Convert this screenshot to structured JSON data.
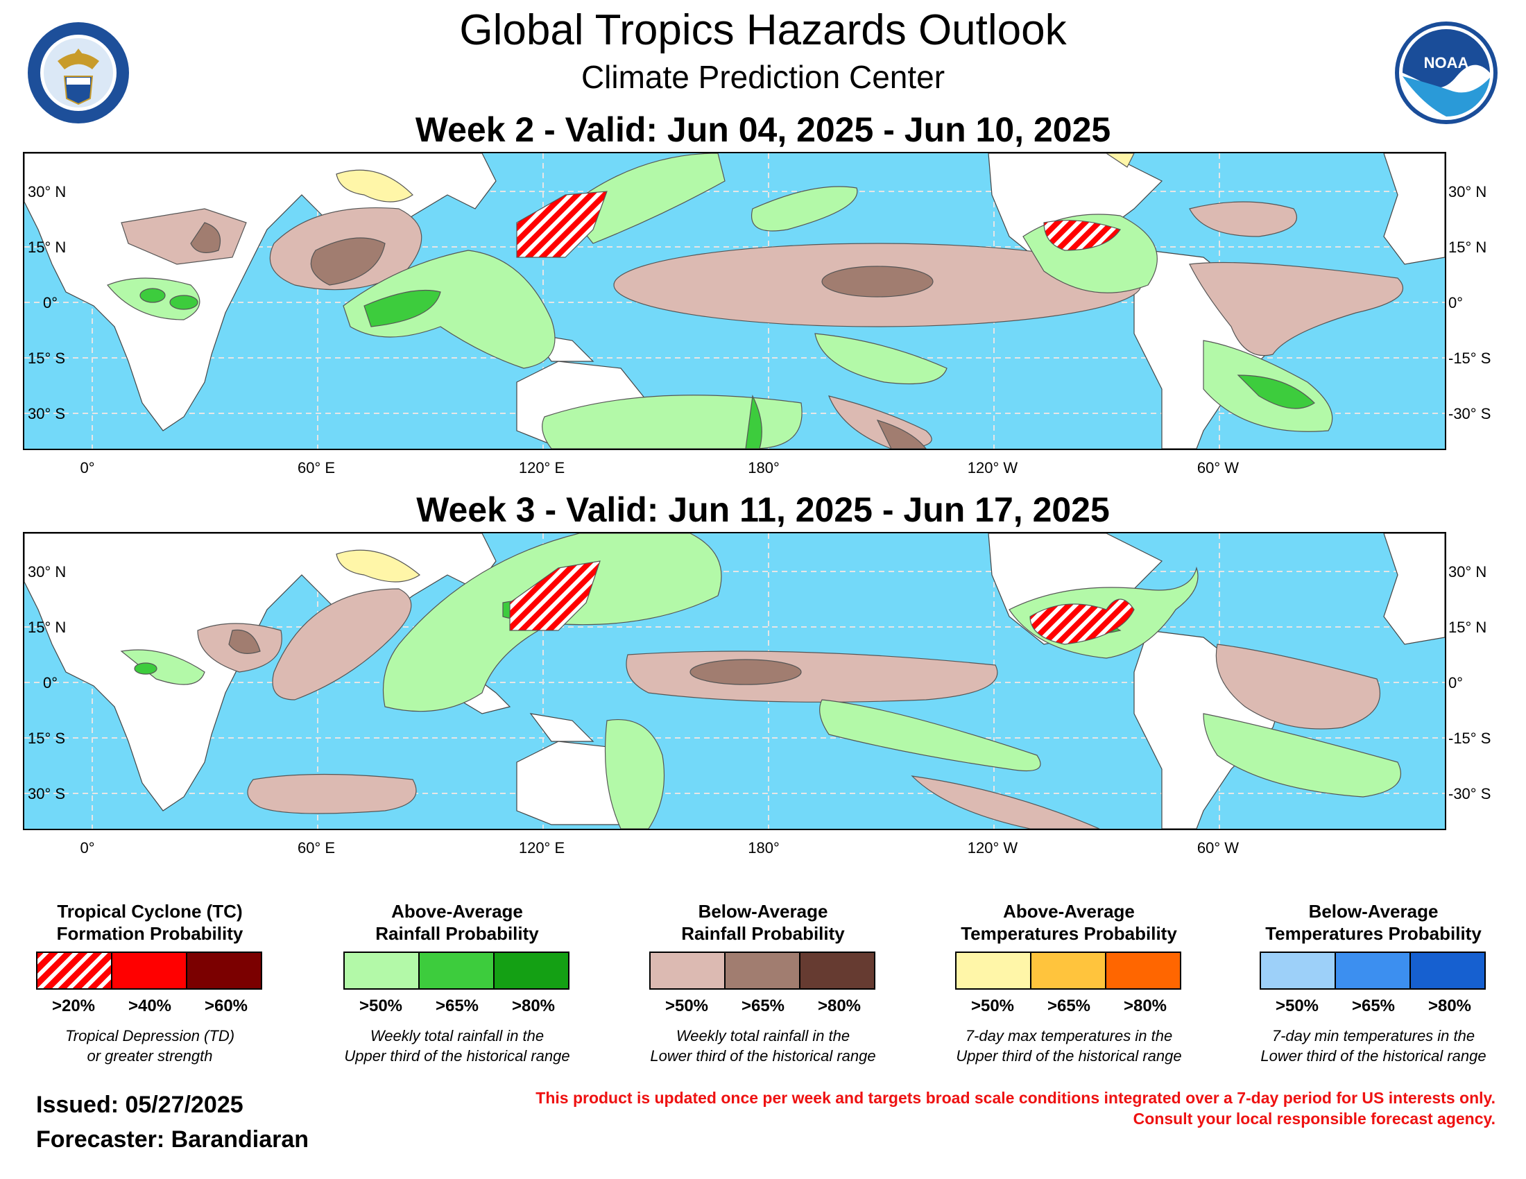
{
  "header": {
    "title": "Global Tropics Hazards Outlook",
    "subtitle": "Climate Prediction Center"
  },
  "logos": {
    "left": "department-of-commerce-seal",
    "right": "noaa-logo",
    "right_text": "NOAA"
  },
  "maps": [
    {
      "title": "Week 2 - Valid: Jun 04, 2025 - Jun 10, 2025"
    },
    {
      "title": "Week 3 - Valid: Jun 11, 2025 - Jun 17, 2025"
    }
  ],
  "axes": {
    "lat_left": [
      "30° N",
      "15° N",
      "0°",
      "15° S",
      "30° S"
    ],
    "lat_right": [
      "30° N",
      "15° N",
      "0°",
      "-15° S",
      "-30° S"
    ],
    "lon": [
      "0°",
      "60° E",
      "120° E",
      "180°",
      "120° W",
      "60° W"
    ]
  },
  "legend": [
    {
      "title1": "Tropical Cyclone (TC)",
      "title2": "Formation Probability",
      "labels": [
        ">20%",
        ">40%",
        ">60%"
      ],
      "colors": [
        "hatched-red",
        "#ff0000",
        "#7b0000"
      ],
      "desc1": "Tropical Depression (TD)",
      "desc2": "or greater strength"
    },
    {
      "title1": "Above-Average",
      "title2": "Rainfall Probability",
      "labels": [
        ">50%",
        ">65%",
        ">80%"
      ],
      "colors": [
        "#b3f9a8",
        "#3dcc3d",
        "#14a014"
      ],
      "desc1": "Weekly total rainfall in the",
      "desc2": "Upper third of the historical range"
    },
    {
      "title1": "Below-Average",
      "title2": "Rainfall Probability",
      "labels": [
        ">50%",
        ">65%",
        ">80%"
      ],
      "colors": [
        "#dcbab2",
        "#a17d70",
        "#663b31"
      ],
      "desc1": "Weekly total rainfall in the",
      "desc2": "Lower third of the historical range"
    },
    {
      "title1": "Above-Average",
      "title2": "Temperatures Probability",
      "labels": [
        ">50%",
        ">65%",
        ">80%"
      ],
      "colors": [
        "#fff6a8",
        "#ffc43d",
        "#ff6600"
      ],
      "desc1": "7-day max temperatures in the",
      "desc2": "Upper third of the historical range"
    },
    {
      "title1": "Below-Average",
      "title2": "Temperatures Probability",
      "labels": [
        ">50%",
        ">65%",
        ">80%"
      ],
      "colors": [
        "#9dd0f9",
        "#3c8ff0",
        "#1660d0"
      ],
      "desc1": "7-day min temperatures in the",
      "desc2": "Lower third of the historical range"
    }
  ],
  "footer": {
    "issued": "Issued: 05/27/2025",
    "forecaster": "Forecaster: Barandiaran",
    "disclaimer1": "This product is updated once per week and targets broad scale conditions integrated over a 7-day period for US interests only.",
    "disclaimer2": "Consult your local responsible forecast agency."
  },
  "colors": {
    "ocean": "#73d9f9",
    "land": "#ffffff",
    "tc": "#ff0000"
  }
}
